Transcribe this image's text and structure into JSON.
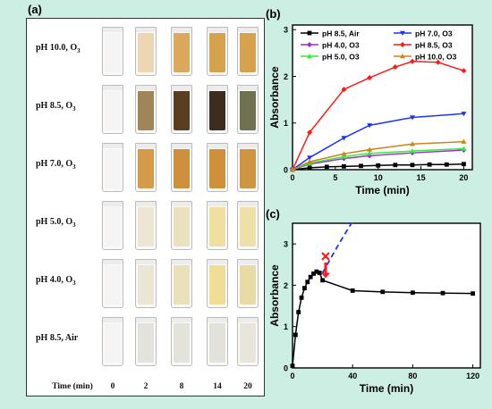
{
  "panel_a": {
    "label": "(a)",
    "rows": [
      {
        "label_main": "pH 10.0, O",
        "label_sub": "3",
        "colors": [
          "#f6f4f3",
          "#ecd6b4",
          "#dca95c",
          "#d7a24e",
          "#d7a24e"
        ]
      },
      {
        "label_main": "pH 8.5, O",
        "label_sub": "3",
        "colors": [
          "#f6f4f3",
          "#9e8658",
          "#5a3e22",
          "#3e2c1e",
          "#6f7150"
        ]
      },
      {
        "label_main": "pH 7.0, O",
        "label_sub": "3",
        "colors": [
          "#f6f4f3",
          "#d59b4a",
          "#cf8f3b",
          "#cf8f3b",
          "#cf9641"
        ]
      },
      {
        "label_main": "pH 5.0, O",
        "label_sub": "3",
        "colors": [
          "#f6f4f3",
          "#ece6d2",
          "#ebe1bd",
          "#efdfa0",
          "#eee0a7"
        ]
      },
      {
        "label_main": "pH 4.0, O",
        "label_sub": "3",
        "colors": [
          "#f6f4f3",
          "#ebe5d4",
          "#ebe1b9",
          "#f0de97",
          "#e9dba6"
        ]
      },
      {
        "label_main": "pH 8.5, Air",
        "label_sub": "",
        "colors": [
          "#f6f4f3",
          "#e3e2dc",
          "#e4e3da",
          "#e2e2da",
          "#e8e6da"
        ]
      }
    ],
    "time_header": "Time (min)",
    "times": [
      "0",
      "2",
      "8",
      "14",
      "20"
    ]
  },
  "chart_data": [
    {
      "type": "line",
      "panel_label": "(b)",
      "xlabel": "Time (min)",
      "ylabel": "Absorbance",
      "xlim": [
        0,
        21
      ],
      "ylim": [
        0,
        3.1
      ],
      "xticks": [
        "0",
        "5",
        "10",
        "15",
        "20"
      ],
      "yticks": [
        "0",
        "1",
        "2",
        "3"
      ],
      "series": [
        {
          "name": "pH 8.5, Air",
          "color": "#000000",
          "marker": "square",
          "x": [
            0,
            2,
            4,
            6,
            8,
            10,
            12,
            14,
            16,
            18,
            20
          ],
          "y": [
            0.0,
            0.04,
            0.06,
            0.07,
            0.08,
            0.09,
            0.1,
            0.1,
            0.11,
            0.11,
            0.12
          ]
        },
        {
          "name": "pH 7.0, O3",
          "color": "#1a33ff",
          "marker": "triangle-down",
          "x": [
            0,
            2,
            6,
            9,
            14,
            20
          ],
          "y": [
            0.0,
            0.26,
            0.68,
            0.95,
            1.12,
            1.2
          ]
        },
        {
          "name": "pH 4.0, O3",
          "color": "#9b2fd8",
          "marker": "diamond",
          "x": [
            0,
            2,
            6,
            9,
            14,
            20
          ],
          "y": [
            0.0,
            0.12,
            0.24,
            0.3,
            0.36,
            0.42
          ]
        },
        {
          "name": "pH 8.5, O3",
          "color": "#ff1a1a",
          "marker": "diamond",
          "x": [
            0,
            2,
            6,
            9,
            12,
            14,
            17,
            20
          ],
          "y": [
            0.0,
            0.8,
            1.72,
            1.97,
            2.2,
            2.32,
            2.3,
            2.12
          ]
        },
        {
          "name": "pH 5.0, O3",
          "color": "#33ee33",
          "marker": "triangle-up",
          "x": [
            0,
            2,
            6,
            9,
            14,
            20
          ],
          "y": [
            0.0,
            0.14,
            0.28,
            0.35,
            0.4,
            0.45
          ]
        },
        {
          "name": "pH 10.0, O3",
          "color": "#c8861b",
          "marker": "triangle-up",
          "x": [
            0,
            2,
            6,
            9,
            14,
            20
          ],
          "y": [
            0.0,
            0.17,
            0.34,
            0.43,
            0.55,
            0.6
          ]
        }
      ],
      "legend": "top-left, two columns"
    },
    {
      "type": "line",
      "panel_label": "(c)",
      "xlabel": "Time (min)",
      "ylabel": "Absorbance",
      "xlim": [
        0,
        125
      ],
      "ylim": [
        0,
        3.5
      ],
      "xticks": [
        "0",
        "40",
        "80",
        "120"
      ],
      "yticks": [
        "0",
        "1",
        "2",
        "3"
      ],
      "series": [
        {
          "name": "",
          "color": "#000000",
          "marker": "square",
          "x": [
            0,
            2,
            4,
            6,
            8,
            10,
            12,
            14,
            16,
            18,
            20,
            40,
            60,
            80,
            100,
            120
          ],
          "y": [
            0.05,
            0.8,
            1.35,
            1.7,
            1.93,
            2.08,
            2.2,
            2.28,
            2.33,
            2.3,
            2.12,
            1.87,
            1.84,
            1.82,
            1.81,
            1.8
          ]
        },
        {
          "name": "",
          "color": "#1a33ff",
          "marker": "none",
          "dashed": true,
          "x": [
            20,
            24,
            28,
            32,
            36,
            40
          ],
          "y": [
            2.3,
            2.56,
            2.82,
            3.07,
            3.31,
            3.55
          ]
        }
      ],
      "annotations": [
        {
          "type": "cross",
          "color": "#ff1a1a",
          "x": 22,
          "y": 2.7
        },
        {
          "type": "down-arrow",
          "color": "#ff1a1a",
          "x": 22,
          "y_from": 2.55,
          "y_to": 2.17
        }
      ]
    }
  ]
}
